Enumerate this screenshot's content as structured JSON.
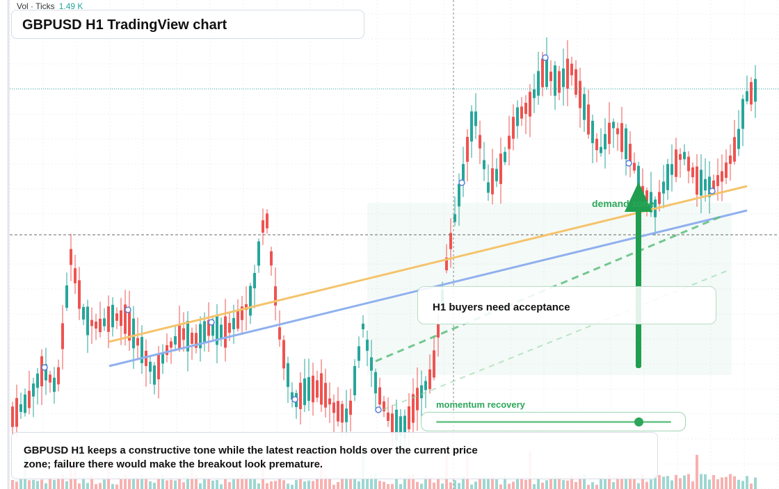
{
  "header": {
    "vol_label": "Vol · Ticks",
    "vol_value": "1.49 K"
  },
  "title": "GBPUSD H1 TradingView chart",
  "callout": "H1 buyers need acceptance",
  "demand_label": "demand zone",
  "momentum": {
    "label": "momentum recovery",
    "level": 0.86
  },
  "summary": "GBPUSD H1 keeps a constructive tone while the latest reaction holds over the current price zone; failure there would make the breakout look premature.",
  "colors": {
    "up": "#26a69a",
    "down": "#ef5350",
    "accent_green": "#2ea65a",
    "trend_orange": "#f5c36b",
    "trend_blue": "#8fb0ee"
  }
}
